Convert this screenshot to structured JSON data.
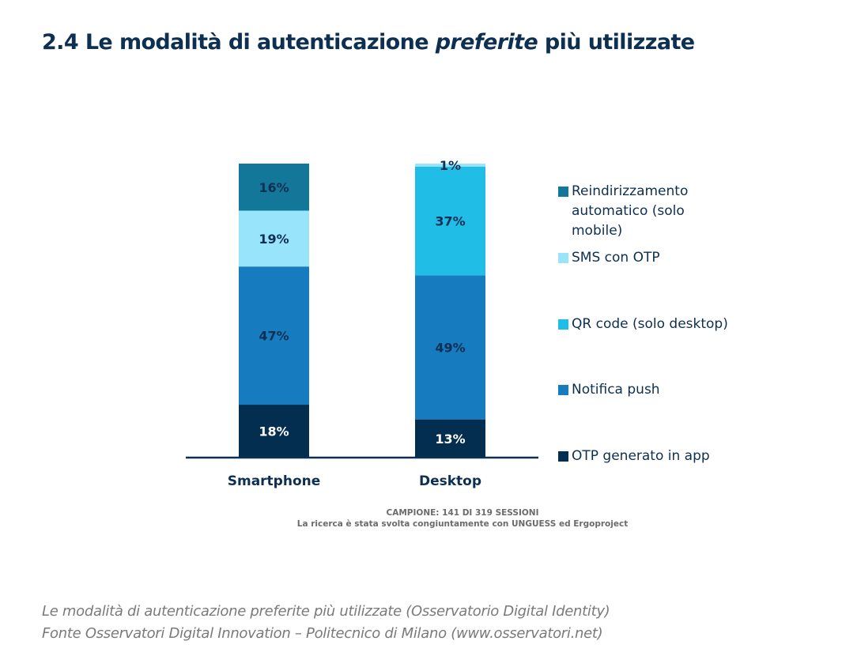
{
  "header": {
    "title_prefix": "2.4 Le modalità di autenticazione ",
    "title_emphasis": "preferite",
    "title_suffix": " più utilizzate"
  },
  "chart_data": {
    "type": "bar",
    "stacked": true,
    "title": "Le modalità di autenticazione preferite più utilizzate",
    "categories": [
      "Smartphone",
      "Desktop"
    ],
    "series": [
      {
        "name": "OTP generato in app",
        "color": "#042e50",
        "label_color": "#ffffff",
        "values": [
          18,
          13
        ]
      },
      {
        "name": "Notifica push",
        "color": "#167bbf",
        "label_color": "#0d2f52",
        "values": [
          47,
          49
        ]
      },
      {
        "name": "QR code (solo desktop)",
        "color": "#20bde6",
        "label_color": "#0d2f52",
        "values": [
          0,
          37
        ]
      },
      {
        "name": "SMS con OTP",
        "color": "#97e4fb",
        "label_color": "#0d2f52",
        "values": [
          19,
          1
        ]
      },
      {
        "name": "Reindirizzamento automatico (solo mobile)",
        "color": "#127799",
        "label_color": "#0d2f52",
        "values": [
          16,
          0
        ]
      }
    ],
    "value_suffix": "%",
    "ylim": [
      0,
      100
    ],
    "xlabel": "",
    "ylabel": "",
    "grid": false,
    "legend_position": "right"
  },
  "legend": [
    {
      "label": "Reindirizzamento automatico (solo mobile)",
      "color": "#127799"
    },
    {
      "label": "SMS con OTP",
      "color": "#97e4fb"
    },
    {
      "label": "QR code (solo desktop)",
      "color": "#20bde6"
    },
    {
      "label": "Notifica push",
      "color": "#167bbf"
    },
    {
      "label": "OTP generato in app",
      "color": "#042e50"
    }
  ],
  "notes": {
    "sample": "CAMPIONE: 141 DI 319 SESSIONI",
    "research": "La ricerca è stata svolta congiuntamente con UNGUESS ed Ergoproject"
  },
  "caption": {
    "line1": "Le modalità di autenticazione preferite più utilizzate (Osservatorio Digital Identity)",
    "line2": "Fonte Osservatori Digital Innovation – Politecnico di Milano (www.osservatori.net)"
  }
}
